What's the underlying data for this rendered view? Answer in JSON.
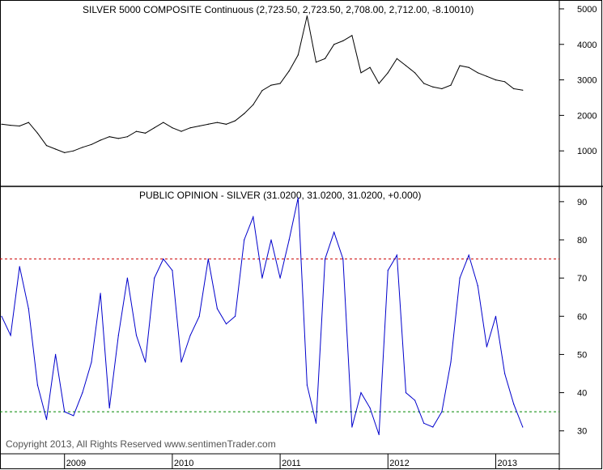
{
  "chart_data": [
    {
      "type": "line",
      "title": "SILVER 5000 COMPOSITE Continuous (2,723.50, 2,723.50, 2,708.00, 2,712.00, -8.10010)",
      "xlabel": "",
      "ylabel": "",
      "ylim": [
        0,
        5250
      ],
      "yticks": [
        "1000",
        "2000",
        "3000",
        "4000",
        "5000"
      ],
      "x_years": [
        "2009",
        "2010",
        "2011",
        "2012",
        "2013"
      ],
      "grid": false,
      "series": [
        {
          "color": "#000000",
          "points": [
            [
              "2008-06",
              1750
            ],
            [
              "2008-07",
              1720
            ],
            [
              "2008-08",
              1700
            ],
            [
              "2008-09",
              1800
            ],
            [
              "2008-10",
              1500
            ],
            [
              "2008-11",
              1150
            ],
            [
              "2008-12",
              1050
            ],
            [
              "2009-01",
              950
            ],
            [
              "2009-02",
              1000
            ],
            [
              "2009-03",
              1100
            ],
            [
              "2009-04",
              1180
            ],
            [
              "2009-05",
              1300
            ],
            [
              "2009-06",
              1400
            ],
            [
              "2009-07",
              1350
            ],
            [
              "2009-08",
              1400
            ],
            [
              "2009-09",
              1550
            ],
            [
              "2009-10",
              1500
            ],
            [
              "2009-11",
              1650
            ],
            [
              "2009-12",
              1800
            ],
            [
              "2010-01",
              1650
            ],
            [
              "2010-02",
              1550
            ],
            [
              "2010-03",
              1650
            ],
            [
              "2010-04",
              1700
            ],
            [
              "2010-05",
              1750
            ],
            [
              "2010-06",
              1800
            ],
            [
              "2010-07",
              1750
            ],
            [
              "2010-08",
              1850
            ],
            [
              "2010-09",
              2050
            ],
            [
              "2010-10",
              2300
            ],
            [
              "2010-11",
              2700
            ],
            [
              "2010-12",
              2850
            ],
            [
              "2011-01",
              2900
            ],
            [
              "2011-02",
              3250
            ],
            [
              "2011-03",
              3700
            ],
            [
              "2011-04",
              4800
            ],
            [
              "2011-05",
              3500
            ],
            [
              "2011-06",
              3600
            ],
            [
              "2011-07",
              4000
            ],
            [
              "2011-08",
              4100
            ],
            [
              "2011-09",
              4250
            ],
            [
              "2011-10",
              3200
            ],
            [
              "2011-11",
              3350
            ],
            [
              "2011-12",
              2900
            ],
            [
              "2012-01",
              3200
            ],
            [
              "2012-02",
              3600
            ],
            [
              "2012-03",
              3400
            ],
            [
              "2012-04",
              3200
            ],
            [
              "2012-05",
              2900
            ],
            [
              "2012-06",
              2800
            ],
            [
              "2012-07",
              2750
            ],
            [
              "2012-08",
              2850
            ],
            [
              "2012-09",
              3400
            ],
            [
              "2012-10",
              3350
            ],
            [
              "2012-11",
              3200
            ],
            [
              "2012-12",
              3100
            ],
            [
              "2013-01",
              3000
            ],
            [
              "2013-02",
              2950
            ],
            [
              "2013-03",
              2750
            ],
            [
              "2013-04",
              2710
            ]
          ]
        }
      ]
    },
    {
      "type": "line",
      "title": "PUBLIC OPINION - SILVER (31.0200, 31.0200, 31.0200, +0.000)",
      "xlabel": "",
      "ylabel": "",
      "ylim": [
        24,
        94
      ],
      "yticks": [
        "30",
        "40",
        "50",
        "60",
        "70",
        "80",
        "90"
      ],
      "x_years": [
        "2009",
        "2010",
        "2011",
        "2012",
        "2013"
      ],
      "grid": false,
      "reference_lines": [
        {
          "value": 75,
          "color": "#cc0000",
          "style": "dashed"
        },
        {
          "value": 35,
          "color": "#008800",
          "style": "dashed"
        }
      ],
      "series": [
        {
          "color": "#0000cc",
          "points": [
            [
              "2008-06",
              60
            ],
            [
              "2008-07",
              55
            ],
            [
              "2008-08",
              73
            ],
            [
              "2008-09",
              62
            ],
            [
              "2008-10",
              42
            ],
            [
              "2008-11",
              33
            ],
            [
              "2008-12",
              50
            ],
            [
              "2009-01",
              35
            ],
            [
              "2009-02",
              34
            ],
            [
              "2009-03",
              40
            ],
            [
              "2009-04",
              48
            ],
            [
              "2009-05",
              66
            ],
            [
              "2009-06",
              36
            ],
            [
              "2009-07",
              55
            ],
            [
              "2009-08",
              70
            ],
            [
              "2009-09",
              55
            ],
            [
              "2009-10",
              48
            ],
            [
              "2009-11",
              70
            ],
            [
              "2009-12",
              75
            ],
            [
              "2010-01",
              72
            ],
            [
              "2010-02",
              48
            ],
            [
              "2010-03",
              55
            ],
            [
              "2010-04",
              60
            ],
            [
              "2010-05",
              75
            ],
            [
              "2010-06",
              62
            ],
            [
              "2010-07",
              58
            ],
            [
              "2010-08",
              60
            ],
            [
              "2010-09",
              80
            ],
            [
              "2010-10",
              86
            ],
            [
              "2010-11",
              70
            ],
            [
              "2010-12",
              80
            ],
            [
              "2011-01",
              70
            ],
            [
              "2011-02",
              80
            ],
            [
              "2011-03",
              91
            ],
            [
              "2011-04",
              42
            ],
            [
              "2011-05",
              32
            ],
            [
              "2011-06",
              75
            ],
            [
              "2011-07",
              82
            ],
            [
              "2011-08",
              75
            ],
            [
              "2011-09",
              31
            ],
            [
              "2011-10",
              40
            ],
            [
              "2011-11",
              36
            ],
            [
              "2011-12",
              29
            ],
            [
              "2012-01",
              72
            ],
            [
              "2012-02",
              76
            ],
            [
              "2012-03",
              40
            ],
            [
              "2012-04",
              38
            ],
            [
              "2012-05",
              32
            ],
            [
              "2012-06",
              31
            ],
            [
              "2012-07",
              35
            ],
            [
              "2012-08",
              48
            ],
            [
              "2012-09",
              70
            ],
            [
              "2012-10",
              76
            ],
            [
              "2012-11",
              68
            ],
            [
              "2012-12",
              52
            ],
            [
              "2013-01",
              60
            ],
            [
              "2013-02",
              45
            ],
            [
              "2013-03",
              37
            ],
            [
              "2013-04",
              31
            ]
          ]
        }
      ]
    }
  ],
  "copyright": "Copyright 2013, All Rights Reserved  www.sentimenTrader.com"
}
